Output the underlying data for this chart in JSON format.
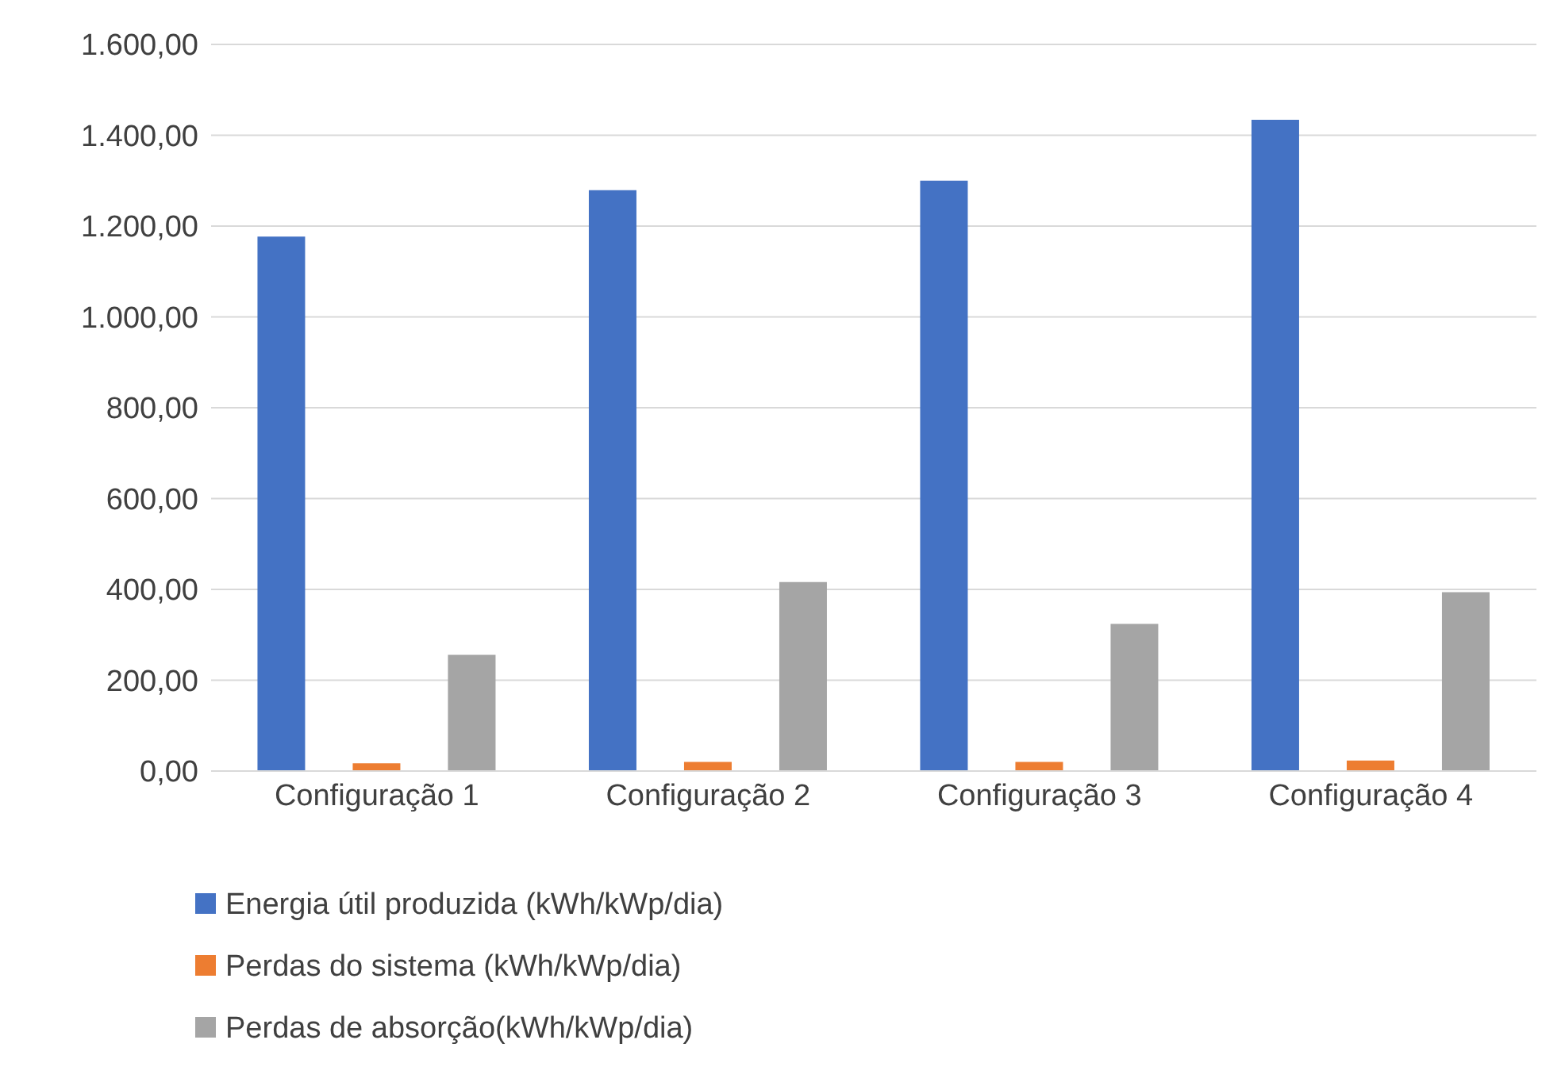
{
  "chart_data": {
    "type": "bar",
    "categories": [
      "Configuração 1",
      "Configuração 2",
      "Configuração 3",
      "Configuração 4"
    ],
    "series": [
      {
        "name": "Energia útil produzida (kWh/kWp/dia)",
        "color": "#4472c4",
        "values": [
          1177,
          1279,
          1300,
          1434
        ]
      },
      {
        "name": "Perdas do sistema (kWh/kWp/dia)",
        "color": "#ed7d31",
        "values": [
          17,
          20,
          20,
          23
        ]
      },
      {
        "name": "Perdas de absorção(kWh/kWp/dia)",
        "color": "#a5a5a5",
        "values": [
          256,
          416,
          324,
          394
        ]
      }
    ],
    "ylim": [
      0,
      1600
    ],
    "yticks": [
      {
        "value": 0,
        "label": "0,00"
      },
      {
        "value": 200,
        "label": "200,00"
      },
      {
        "value": 400,
        "label": "400,00"
      },
      {
        "value": 600,
        "label": "600,00"
      },
      {
        "value": 800,
        "label": "800,00"
      },
      {
        "value": 1000,
        "label": "1.000,00"
      },
      {
        "value": 1200,
        "label": "1.200,00"
      },
      {
        "value": 1400,
        "label": "1.400,00"
      },
      {
        "value": 1600,
        "label": "1.600,00"
      }
    ],
    "grid": "y",
    "legend": "bottom left"
  }
}
